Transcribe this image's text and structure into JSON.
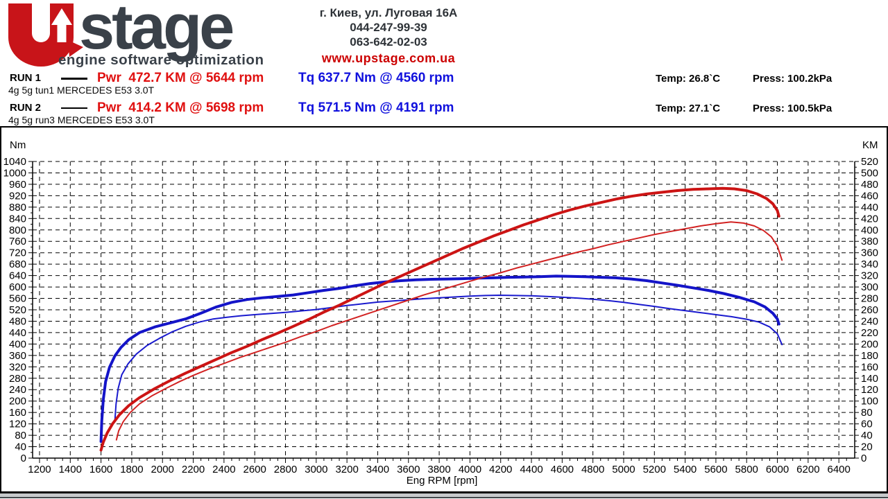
{
  "header": {
    "logo": {
      "icon": "u-up-arrow",
      "word": "stage",
      "tagline": "engine software optimization"
    },
    "address": "г. Киев, ул. Луговая 16А",
    "phone1": "044-247-99-39",
    "phone2": "063-642-02-03",
    "website": "www.upstage.com.ua"
  },
  "runs": [
    {
      "label": "RUN 1",
      "power": "Pwr  472.7 KM @ 5644 rpm",
      "torque": "Tq 637.7 Nm @ 4560 rpm",
      "temp": "Temp: 26.8`C",
      "press": "Press: 100.2kPa",
      "desc": "4g 5g tun1 MERCEDES E53 3.0T"
    },
    {
      "label": "RUN 2",
      "power": "Pwr  414.2 KM @ 5698 rpm",
      "torque": "Tq 571.5 Nm @ 4191 rpm",
      "temp": "Temp: 27.1`C",
      "press": "Press: 100.5kPa",
      "desc": "4g 5g run3 MERCEDES E53 3.0T"
    }
  ],
  "colors": {
    "power_text": "#e01010",
    "torque_text": "#1010dd",
    "website_red": "#cc0000",
    "logo_gray": "#3a4149",
    "logo_red": "#c81419",
    "swatch_black": "#000000"
  },
  "chart_data": {
    "type": "line",
    "title": "",
    "xlabel": "Eng RPM [rpm]",
    "ylabel_left": "Nm",
    "ylabel_right": "KM",
    "grid": "dashed",
    "legend_position": "none",
    "x_axis": {
      "min": 1155,
      "max": 6503,
      "tick_start": 1200,
      "tick_end": 6400,
      "tick_step": 200,
      "minor_step": 50
    },
    "y_left": {
      "min": 0,
      "max": 1040,
      "tick_step": 40,
      "minor_step": 20
    },
    "y_right": {
      "min": 0,
      "max": 520,
      "tick_step": 20,
      "minor_step": 10
    },
    "series": [
      {
        "name": "RUN 1 torque",
        "axis": "left",
        "unit": "Nm",
        "color": "#1414c8",
        "width": 4,
        "peak": "637.7 Nm @ 4560 rpm",
        "points": [
          [
            1600,
            58
          ],
          [
            1605,
            130
          ],
          [
            1615,
            205
          ],
          [
            1630,
            268
          ],
          [
            1655,
            318
          ],
          [
            1690,
            358
          ],
          [
            1730,
            388
          ],
          [
            1780,
            415
          ],
          [
            1850,
            440
          ],
          [
            1950,
            460
          ],
          [
            2050,
            474
          ],
          [
            2150,
            488
          ],
          [
            2250,
            508
          ],
          [
            2350,
            530
          ],
          [
            2450,
            546
          ],
          [
            2550,
            556
          ],
          [
            2650,
            562
          ],
          [
            2750,
            567
          ],
          [
            2850,
            572
          ],
          [
            2950,
            580
          ],
          [
            3050,
            588
          ],
          [
            3150,
            595
          ],
          [
            3250,
            604
          ],
          [
            3350,
            612
          ],
          [
            3450,
            618
          ],
          [
            3550,
            622
          ],
          [
            3650,
            625
          ],
          [
            3750,
            627
          ],
          [
            3850,
            628
          ],
          [
            3950,
            629
          ],
          [
            4050,
            631
          ],
          [
            4150,
            632
          ],
          [
            4250,
            634
          ],
          [
            4350,
            635
          ],
          [
            4450,
            636
          ],
          [
            4560,
            638
          ],
          [
            4650,
            637
          ],
          [
            4750,
            636
          ],
          [
            4850,
            634
          ],
          [
            4950,
            632
          ],
          [
            5050,
            628
          ],
          [
            5150,
            622
          ],
          [
            5250,
            614
          ],
          [
            5350,
            606
          ],
          [
            5450,
            597
          ],
          [
            5550,
            588
          ],
          [
            5650,
            577
          ],
          [
            5750,
            564
          ],
          [
            5850,
            548
          ],
          [
            5920,
            530
          ],
          [
            5970,
            508
          ],
          [
            6000,
            488
          ],
          [
            6010,
            470
          ]
        ]
      },
      {
        "name": "RUN 2 torque",
        "axis": "left",
        "unit": "Nm",
        "color": "#1a1ace",
        "width": 2,
        "peak": "571.5 Nm @ 4191 rpm",
        "points": [
          [
            1690,
            128
          ],
          [
            1698,
            190
          ],
          [
            1712,
            245
          ],
          [
            1735,
            292
          ],
          [
            1775,
            330
          ],
          [
            1830,
            365
          ],
          [
            1900,
            395
          ],
          [
            1980,
            420
          ],
          [
            2060,
            442
          ],
          [
            2150,
            462
          ],
          [
            2240,
            477
          ],
          [
            2330,
            488
          ],
          [
            2420,
            494
          ],
          [
            2510,
            499
          ],
          [
            2600,
            503
          ],
          [
            2700,
            507
          ],
          [
            2800,
            511
          ],
          [
            2900,
            516
          ],
          [
            3000,
            521
          ],
          [
            3100,
            528
          ],
          [
            3200,
            535
          ],
          [
            3300,
            541
          ],
          [
            3400,
            547
          ],
          [
            3500,
            551
          ],
          [
            3600,
            555
          ],
          [
            3700,
            559
          ],
          [
            3800,
            562
          ],
          [
            3900,
            565
          ],
          [
            4000,
            568
          ],
          [
            4100,
            570
          ],
          [
            4191,
            571
          ],
          [
            4300,
            570
          ],
          [
            4400,
            569
          ],
          [
            4500,
            567
          ],
          [
            4600,
            564
          ],
          [
            4700,
            561
          ],
          [
            4800,
            557
          ],
          [
            4900,
            552
          ],
          [
            5000,
            546
          ],
          [
            5100,
            539
          ],
          [
            5200,
            532
          ],
          [
            5300,
            524
          ],
          [
            5400,
            517
          ],
          [
            5500,
            510
          ],
          [
            5600,
            503
          ],
          [
            5700,
            496
          ],
          [
            5800,
            487
          ],
          [
            5880,
            477
          ],
          [
            5950,
            460
          ],
          [
            6000,
            436
          ],
          [
            6030,
            398
          ]
        ]
      },
      {
        "name": "RUN 1 power",
        "axis": "right",
        "unit": "KM",
        "color": "#cc1414",
        "width": 4,
        "peak": "472.7 KM @ 5644 rpm",
        "points": [
          [
            1600,
            14
          ],
          [
            1615,
            28
          ],
          [
            1640,
            44
          ],
          [
            1675,
            60
          ],
          [
            1720,
            76
          ],
          [
            1780,
            92
          ],
          [
            1850,
            106
          ],
          [
            1950,
            122
          ],
          [
            2050,
            136
          ],
          [
            2150,
            149
          ],
          [
            2250,
            161
          ],
          [
            2350,
            173
          ],
          [
            2450,
            185
          ],
          [
            2550,
            196
          ],
          [
            2650,
            208
          ],
          [
            2750,
            219
          ],
          [
            2850,
            231
          ],
          [
            2950,
            243
          ],
          [
            3050,
            256
          ],
          [
            3150,
            268
          ],
          [
            3250,
            281
          ],
          [
            3350,
            294
          ],
          [
            3450,
            307
          ],
          [
            3550,
            319
          ],
          [
            3650,
            331
          ],
          [
            3750,
            343
          ],
          [
            3850,
            355
          ],
          [
            3950,
            367
          ],
          [
            4050,
            378
          ],
          [
            4150,
            389
          ],
          [
            4250,
            399
          ],
          [
            4350,
            409
          ],
          [
            4450,
            418
          ],
          [
            4550,
            427
          ],
          [
            4650,
            435
          ],
          [
            4750,
            442
          ],
          [
            4850,
            448
          ],
          [
            4950,
            454
          ],
          [
            5050,
            459
          ],
          [
            5150,
            463
          ],
          [
            5250,
            466
          ],
          [
            5350,
            469
          ],
          [
            5450,
            471
          ],
          [
            5550,
            472
          ],
          [
            5644,
            473
          ],
          [
            5720,
            472
          ],
          [
            5800,
            469
          ],
          [
            5870,
            463
          ],
          [
            5930,
            455
          ],
          [
            5970,
            446
          ],
          [
            6000,
            434
          ],
          [
            6010,
            424
          ]
        ]
      },
      {
        "name": "RUN 2 power",
        "axis": "right",
        "unit": "KM",
        "color": "#d22222",
        "width": 2,
        "peak": "414.2 KM @ 5698 rpm",
        "points": [
          [
            1700,
            32
          ],
          [
            1715,
            48
          ],
          [
            1745,
            64
          ],
          [
            1790,
            80
          ],
          [
            1850,
            95
          ],
          [
            1930,
            109
          ],
          [
            2020,
            122
          ],
          [
            2110,
            134
          ],
          [
            2200,
            145
          ],
          [
            2300,
            156
          ],
          [
            2400,
            166
          ],
          [
            2500,
            176
          ],
          [
            2600,
            185
          ],
          [
            2700,
            194
          ],
          [
            2800,
            203
          ],
          [
            2900,
            213
          ],
          [
            3000,
            222
          ],
          [
            3100,
            232
          ],
          [
            3200,
            241
          ],
          [
            3300,
            250
          ],
          [
            3400,
            259
          ],
          [
            3500,
            268
          ],
          [
            3600,
            277
          ],
          [
            3700,
            286
          ],
          [
            3800,
            294
          ],
          [
            3900,
            302
          ],
          [
            4000,
            310
          ],
          [
            4100,
            318
          ],
          [
            4200,
            325
          ],
          [
            4300,
            333
          ],
          [
            4400,
            340
          ],
          [
            4500,
            347
          ],
          [
            4600,
            354
          ],
          [
            4700,
            361
          ],
          [
            4800,
            367
          ],
          [
            4900,
            374
          ],
          [
            5000,
            380
          ],
          [
            5100,
            386
          ],
          [
            5200,
            392
          ],
          [
            5300,
            397
          ],
          [
            5400,
            402
          ],
          [
            5500,
            407
          ],
          [
            5600,
            411
          ],
          [
            5698,
            414
          ],
          [
            5780,
            412
          ],
          [
            5850,
            407
          ],
          [
            5910,
            399
          ],
          [
            5960,
            388
          ],
          [
            6000,
            372
          ],
          [
            6030,
            347
          ]
        ]
      }
    ]
  }
}
